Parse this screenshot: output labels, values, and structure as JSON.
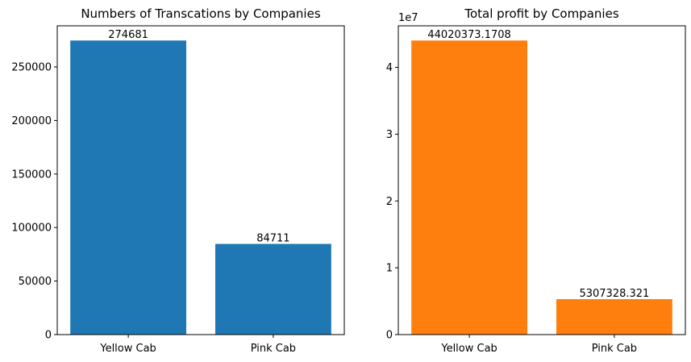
{
  "chart_data": [
    {
      "type": "bar",
      "title": "Numbers of Transcations by Companies",
      "xlabel": "",
      "ylabel": "",
      "categories": [
        "Yellow Cab",
        "Pink Cab"
      ],
      "values": [
        274681,
        84711
      ],
      "data_labels": [
        "274681",
        "84711"
      ],
      "ylim": [
        0,
        288415
      ],
      "yticks": [
        0,
        50000,
        100000,
        150000,
        200000,
        250000
      ],
      "ytick_labels": [
        "0",
        "50000",
        "100000",
        "150000",
        "200000",
        "250000"
      ],
      "y_offset_label": "",
      "bar_color": "#1f77b4",
      "grid": false
    },
    {
      "type": "bar",
      "title": "Total profit by Companies",
      "xlabel": "",
      "ylabel": "",
      "categories": [
        "Yellow Cab",
        "Pink Cab"
      ],
      "values": [
        44020373.1708,
        5307328.321
      ],
      "data_labels": [
        "44020373.1708",
        "5307328.321"
      ],
      "ylim": [
        0,
        46221392
      ],
      "yticks": [
        0,
        10000000,
        20000000,
        30000000,
        40000000
      ],
      "ytick_labels": [
        "0",
        "1",
        "2",
        "3",
        "4"
      ],
      "y_offset_label": "1e7",
      "bar_color": "#ff7f0e",
      "grid": false
    }
  ]
}
